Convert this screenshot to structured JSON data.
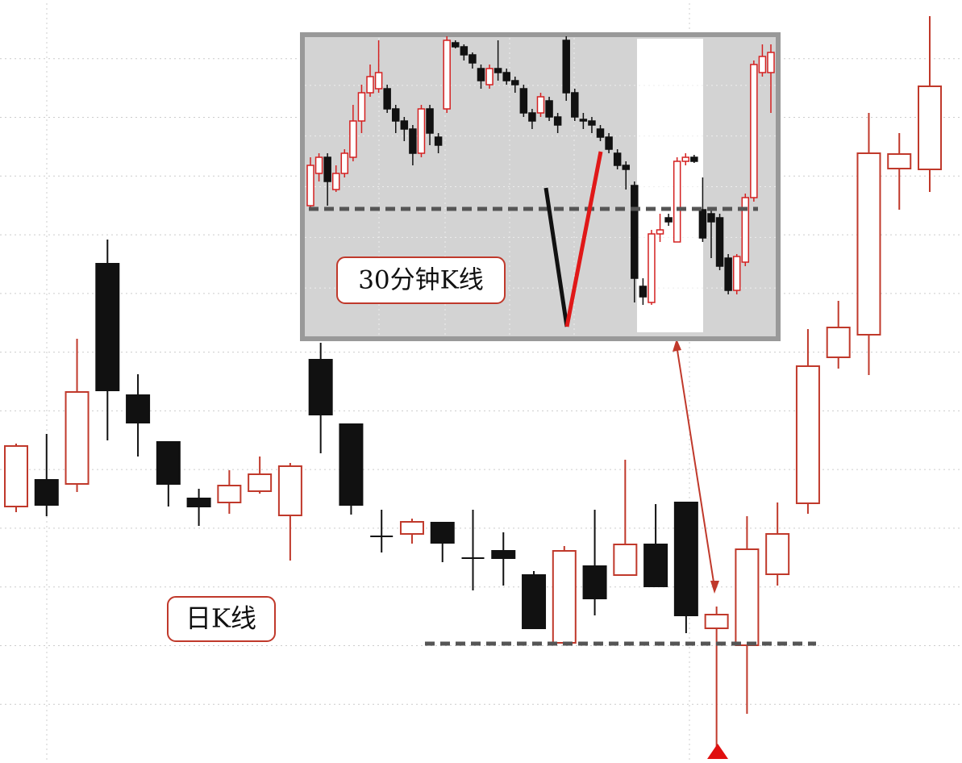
{
  "chart_data": [
    {
      "type": "candlestick",
      "annotation": "日K线",
      "grid": true,
      "ylim": [
        0,
        946
      ],
      "up_color": "#c0392b",
      "down_color": "#111111",
      "support_line": 148,
      "open": [
        318,
        351,
        346,
        619,
        456,
        398,
        328,
        323,
        337,
        307,
        500,
        420,
        281,
        284,
        298,
        254,
        263,
        233,
        149,
        244,
        233,
        271,
        323,
        167,
        146,
        234,
        322,
        503,
        531,
        737,
        736
      ],
      "close": [
        393,
        320,
        460,
        462,
        422,
        346,
        318,
        344,
        358,
        368,
        432,
        320,
        281,
        299,
        273,
        254,
        254,
        167,
        263,
        204,
        271,
        219,
        183,
        184,
        265,
        284,
        492,
        540,
        756,
        755,
        839
      ],
      "high": [
        396,
        408,
        526,
        649,
        482,
        398,
        340,
        363,
        380,
        372,
        521,
        420,
        314,
        303,
        298,
        314,
        286,
        238,
        269,
        314,
        376,
        321,
        323,
        194,
        306,
        323,
        538,
        573,
        806,
        781,
        926
      ],
      "low": [
        311,
        306,
        336,
        400,
        380,
        318,
        294,
        309,
        334,
        251,
        384,
        308,
        261,
        272,
        249,
        214,
        220,
        167,
        149,
        183,
        233,
        219,
        161,
        16,
        61,
        220,
        309,
        489,
        481,
        686,
        708
      ]
    },
    {
      "type": "candlestick",
      "annotation": "30分钟K线",
      "grid": true,
      "ylim": [
        0,
        377
      ],
      "up_color": "#d42020",
      "down_color": "#111111",
      "support_line": 161,
      "open": [
        165,
        205,
        225,
        185,
        205,
        225,
        270,
        305,
        310,
        310,
        285,
        270,
        260,
        230,
        285,
        250,
        285,
        367,
        362,
        352,
        335,
        315,
        335,
        330,
        320,
        310,
        280,
        280,
        295,
        275,
        370,
        305,
        272,
        270,
        260,
        250,
        230,
        215,
        190,
        65,
        45,
        130,
        150,
        120,
        220,
        225,
        160,
        155,
        150,
        100,
        60,
        95,
        175,
        330,
        330
      ],
      "close": [
        215,
        225,
        195,
        205,
        230,
        270,
        305,
        325,
        330,
        285,
        270,
        260,
        230,
        285,
        255,
        240,
        370,
        362,
        352,
        342,
        320,
        335,
        330,
        320,
        315,
        280,
        270,
        300,
        275,
        265,
        305,
        275,
        270,
        265,
        250,
        235,
        215,
        210,
        75,
        52,
        130,
        135,
        145,
        220,
        225,
        220,
        125,
        145,
        90,
        60,
        102,
        175,
        340,
        350,
        355
      ],
      "high": [
        225,
        230,
        230,
        215,
        235,
        290,
        315,
        340,
        370,
        315,
        290,
        275,
        265,
        290,
        290,
        255,
        375,
        370,
        365,
        355,
        340,
        340,
        370,
        335,
        325,
        315,
        285,
        305,
        300,
        280,
        375,
        310,
        280,
        275,
        265,
        255,
        235,
        220,
        195,
        75,
        135,
        155,
        155,
        225,
        230,
        228,
        200,
        160,
        155,
        105,
        105,
        180,
        345,
        365,
        365
      ],
      "low": [
        160,
        195,
        165,
        182,
        200,
        220,
        255,
        300,
        305,
        280,
        255,
        245,
        215,
        225,
        240,
        230,
        280,
        360,
        345,
        335,
        310,
        310,
        320,
        315,
        305,
        275,
        260,
        275,
        270,
        255,
        295,
        270,
        260,
        255,
        245,
        230,
        210,
        185,
        45,
        42,
        42,
        120,
        140,
        120,
        215,
        218,
        120,
        100,
        85,
        55,
        55,
        90,
        170,
        325,
        280
      ]
    }
  ]
}
